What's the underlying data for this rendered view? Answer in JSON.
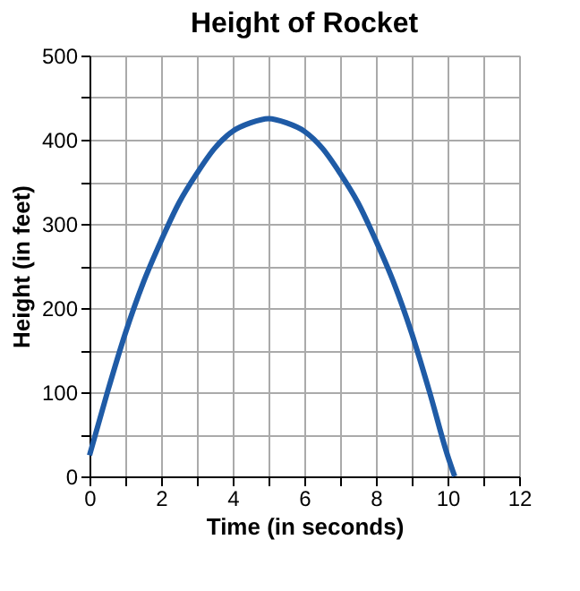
{
  "chart_data": {
    "type": "line",
    "title": "Height of Rocket",
    "xlabel": "Time (in seconds)",
    "ylabel": "Height (in feet)",
    "x": [
      0,
      0.5,
      1,
      1.5,
      2,
      2.5,
      3,
      3.5,
      4,
      4.5,
      5,
      5.5,
      6,
      6.5,
      7,
      7.5,
      8,
      8.5,
      9,
      9.5,
      10,
      10.2
    ],
    "series": [
      {
        "color": "#1f5ba6",
        "values": [
          25,
          100,
          170,
          230,
          280,
          325,
          360,
          390,
          410,
          420,
          425,
          420,
          410,
          390,
          360,
          325,
          280,
          230,
          170,
          100,
          25,
          0
        ]
      }
    ],
    "xlim": [
      0,
      12
    ],
    "ylim": [
      0,
      500
    ],
    "xticks": [
      0,
      {
        "value": 1,
        "label": null
      },
      2,
      {
        "value": 3,
        "label": null
      },
      4,
      {
        "value": 5,
        "label": null
      },
      6,
      {
        "value": 7,
        "label": null
      },
      8,
      {
        "value": 9,
        "label": null
      },
      10,
      {
        "value": 11,
        "label": null
      },
      12
    ],
    "yticks": [
      0,
      {
        "value": 50,
        "label": null
      },
      100,
      {
        "value": 150,
        "label": null
      },
      200,
      {
        "value": 250,
        "label": null
      },
      300,
      {
        "value": 350,
        "label": null
      },
      400,
      {
        "value": 450,
        "label": null
      },
      500
    ],
    "grid": true,
    "marker": "none",
    "line_style": "solid"
  }
}
